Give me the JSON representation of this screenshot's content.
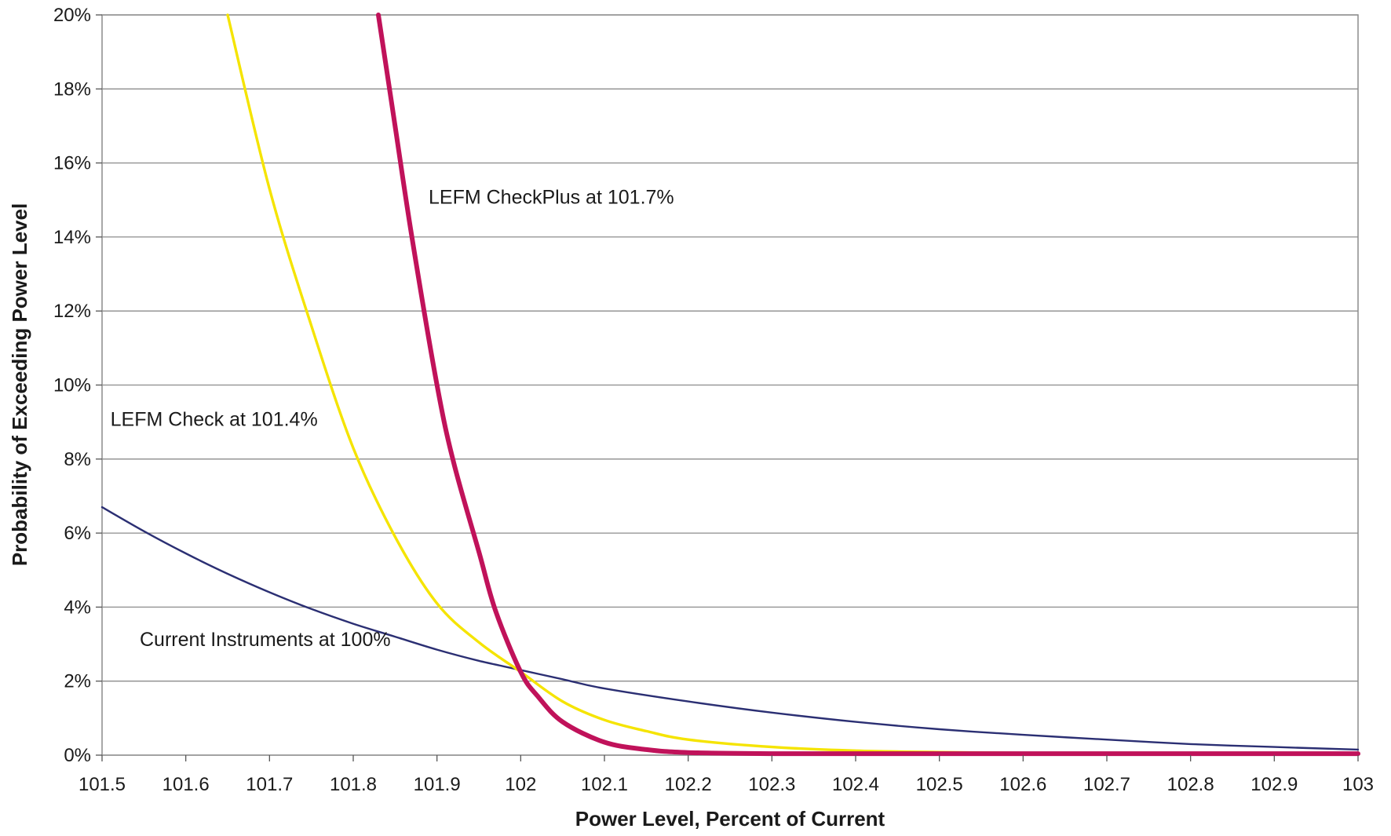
{
  "chart_data": {
    "type": "line",
    "title": "",
    "xlabel": "Power Level, Percent of Current",
    "ylabel": "Probability of Exceeding Power Level",
    "xlim": [
      101.5,
      103
    ],
    "ylim": [
      0,
      20
    ],
    "x_ticks": [
      "101.5",
      "101.6",
      "101.7",
      "101.8",
      "101.9",
      "102",
      "102.1",
      "102.2",
      "102.3",
      "102.4",
      "102.5",
      "102.6",
      "102.7",
      "102.8",
      "102.9",
      "103"
    ],
    "y_ticks": [
      "0%",
      "2%",
      "4%",
      "6%",
      "8%",
      "10%",
      "12%",
      "14%",
      "16%",
      "18%",
      "20%"
    ],
    "grid": true,
    "legend": "none",
    "series": [
      {
        "name": "Current Instruments at 100%",
        "color": "#2b2f73",
        "x": [
          101.5,
          101.55,
          101.6,
          101.65,
          101.7,
          101.75,
          101.8,
          101.85,
          101.9,
          101.95,
          102.0,
          102.05,
          102.1,
          102.2,
          102.3,
          102.4,
          102.5,
          102.6,
          102.7,
          102.8,
          102.9,
          103.0
        ],
        "y": [
          6.7,
          6.05,
          5.45,
          4.9,
          4.4,
          3.95,
          3.55,
          3.2,
          2.85,
          2.55,
          2.3,
          2.05,
          1.8,
          1.45,
          1.15,
          0.9,
          0.7,
          0.55,
          0.42,
          0.3,
          0.22,
          0.15
        ]
      },
      {
        "name": "LEFM Check at 101.4%",
        "color": "#f5e400",
        "x": [
          101.65,
          101.7,
          101.75,
          101.8,
          101.85,
          101.9,
          101.95,
          102.0,
          102.05,
          102.1,
          102.15,
          102.2,
          102.3,
          102.4,
          102.5,
          102.6,
          102.7,
          102.8,
          102.9,
          103.0
        ],
        "y": [
          20.0,
          15.3,
          11.6,
          8.3,
          5.9,
          4.1,
          3.05,
          2.25,
          1.45,
          0.95,
          0.65,
          0.42,
          0.22,
          0.12,
          0.08,
          0.06,
          0.05,
          0.05,
          0.05,
          0.05
        ]
      },
      {
        "name": "LEFM CheckPlus at 101.7%",
        "color": "#c0125a",
        "x": [
          101.83,
          101.85,
          101.87,
          101.9,
          101.92,
          101.95,
          101.97,
          102.0,
          102.02,
          102.05,
          102.1,
          102.15,
          102.2,
          102.3,
          102.4,
          102.5,
          102.6,
          102.8,
          103.0
        ],
        "y": [
          20.0,
          17.0,
          14.0,
          10.0,
          7.9,
          5.5,
          3.9,
          2.25,
          1.6,
          0.9,
          0.35,
          0.15,
          0.07,
          0.04,
          0.04,
          0.04,
          0.04,
          0.04,
          0.04
        ]
      }
    ],
    "annotations": [
      {
        "text": "LEFM CheckPlus at 101.7%",
        "x": 101.89,
        "y": 14.9
      },
      {
        "text": "LEFM Check at 101.4%",
        "x": 101.51,
        "y": 8.9
      },
      {
        "text": "Current Instruments at 100%",
        "x": 101.545,
        "y": 2.95
      }
    ]
  }
}
